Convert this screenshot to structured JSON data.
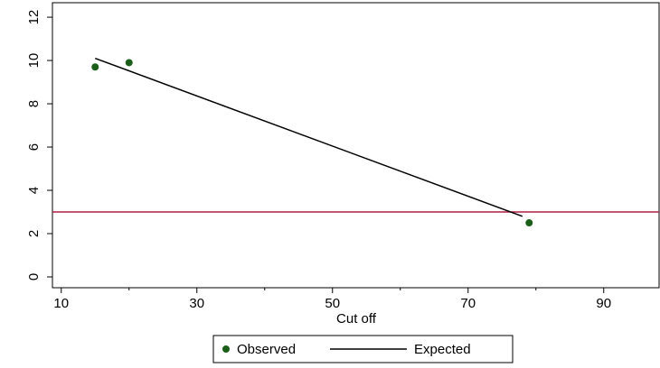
{
  "chart_data": {
    "type": "scatter-line",
    "xlabel": "Cut off",
    "xlim": [
      8.7,
      98.3
    ],
    "xticks": [
      10,
      30,
      50,
      70,
      90
    ],
    "xminorticks": [
      20,
      40,
      60,
      80
    ],
    "ylim": [
      -0.5,
      12.67
    ],
    "yticks": [
      0,
      2,
      4,
      6,
      8,
      10,
      12
    ],
    "series": [
      {
        "name": "Observed",
        "color": "#1a5e1a",
        "kind": "points",
        "x": [
          15,
          20,
          79
        ],
        "values": [
          9.7,
          9.9,
          2.5
        ]
      },
      {
        "name": "Expected",
        "color": "#000000",
        "kind": "line",
        "x": [
          15,
          78
        ],
        "values": [
          10.1,
          2.8
        ]
      }
    ],
    "reference_line": {
      "value": 3,
      "color": "#b01c44"
    },
    "legend": "bottom"
  }
}
